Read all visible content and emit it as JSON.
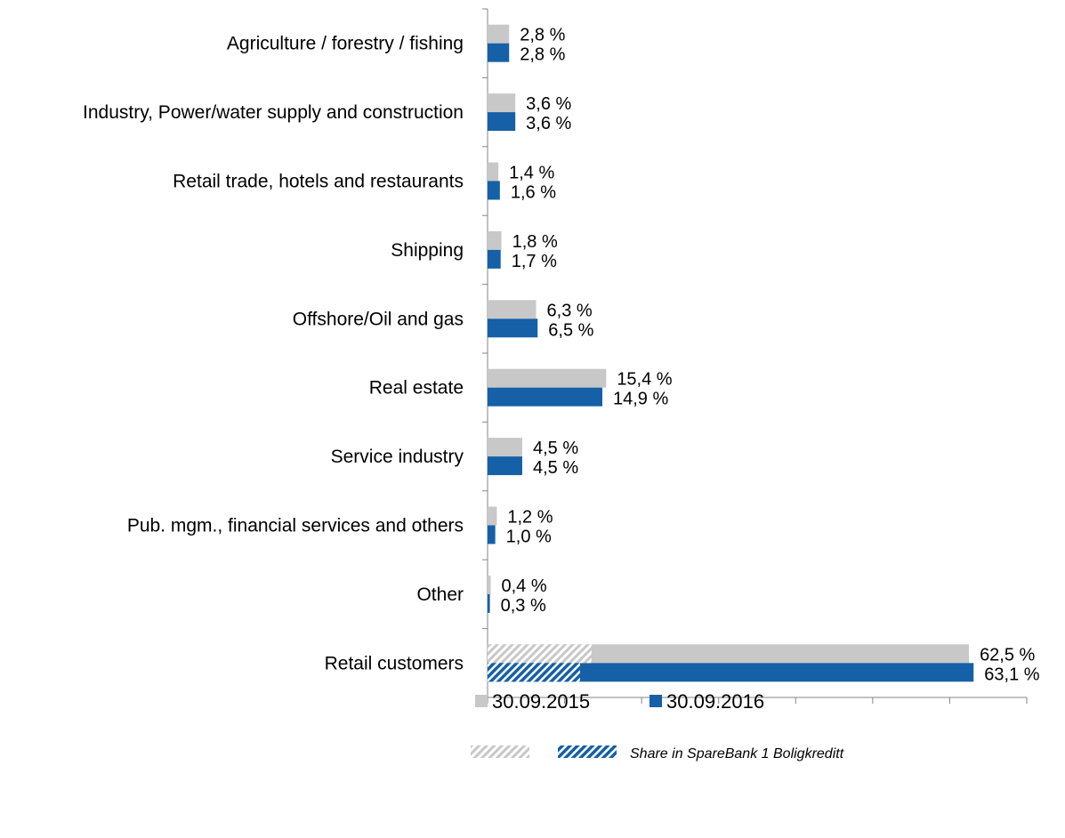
{
  "chart_data": {
    "type": "bar",
    "orientation": "horizontal",
    "categories": [
      "Agriculture / forestry / fishing",
      "Industry, Power/water supply and construction",
      "Retail trade, hotels and restaurants",
      "Shipping",
      "Offshore/Oil and gas",
      "Real estate",
      "Service industry",
      "Pub. mgm., financial services and others",
      "Other",
      "Retail customers"
    ],
    "series": [
      {
        "name": "30.09.2015",
        "color": "#c8c8c8",
        "values": [
          2.8,
          3.6,
          1.4,
          1.8,
          6.3,
          15.4,
          4.5,
          1.2,
          0.4,
          62.5
        ],
        "labels": [
          "2,8 %",
          "3,6 %",
          "1,4 %",
          "1,8 %",
          "6,3 %",
          "15,4 %",
          "4,5 %",
          "1,2 %",
          "0,4 %",
          "62,5 %"
        ]
      },
      {
        "name": "30.09.2016",
        "color": "#1560a6",
        "values": [
          2.8,
          3.6,
          1.6,
          1.7,
          6.5,
          14.9,
          4.5,
          1.0,
          0.3,
          63.1
        ],
        "labels": [
          "2,8 %",
          "3,6 %",
          "1,6 %",
          "1,7 %",
          "6,5 %",
          "14,9 %",
          "4,5 %",
          "1,0 %",
          "0,3 %",
          "63,1 %"
        ]
      }
    ],
    "boligkreditt_share": {
      "category": "Retail customers",
      "values": [
        13.5,
        12.0
      ]
    },
    "xlim": [
      0,
      70
    ],
    "grid": false,
    "legend_position": "bottom",
    "legend_note": "Share in SpareBank 1 Boligkreditt"
  }
}
